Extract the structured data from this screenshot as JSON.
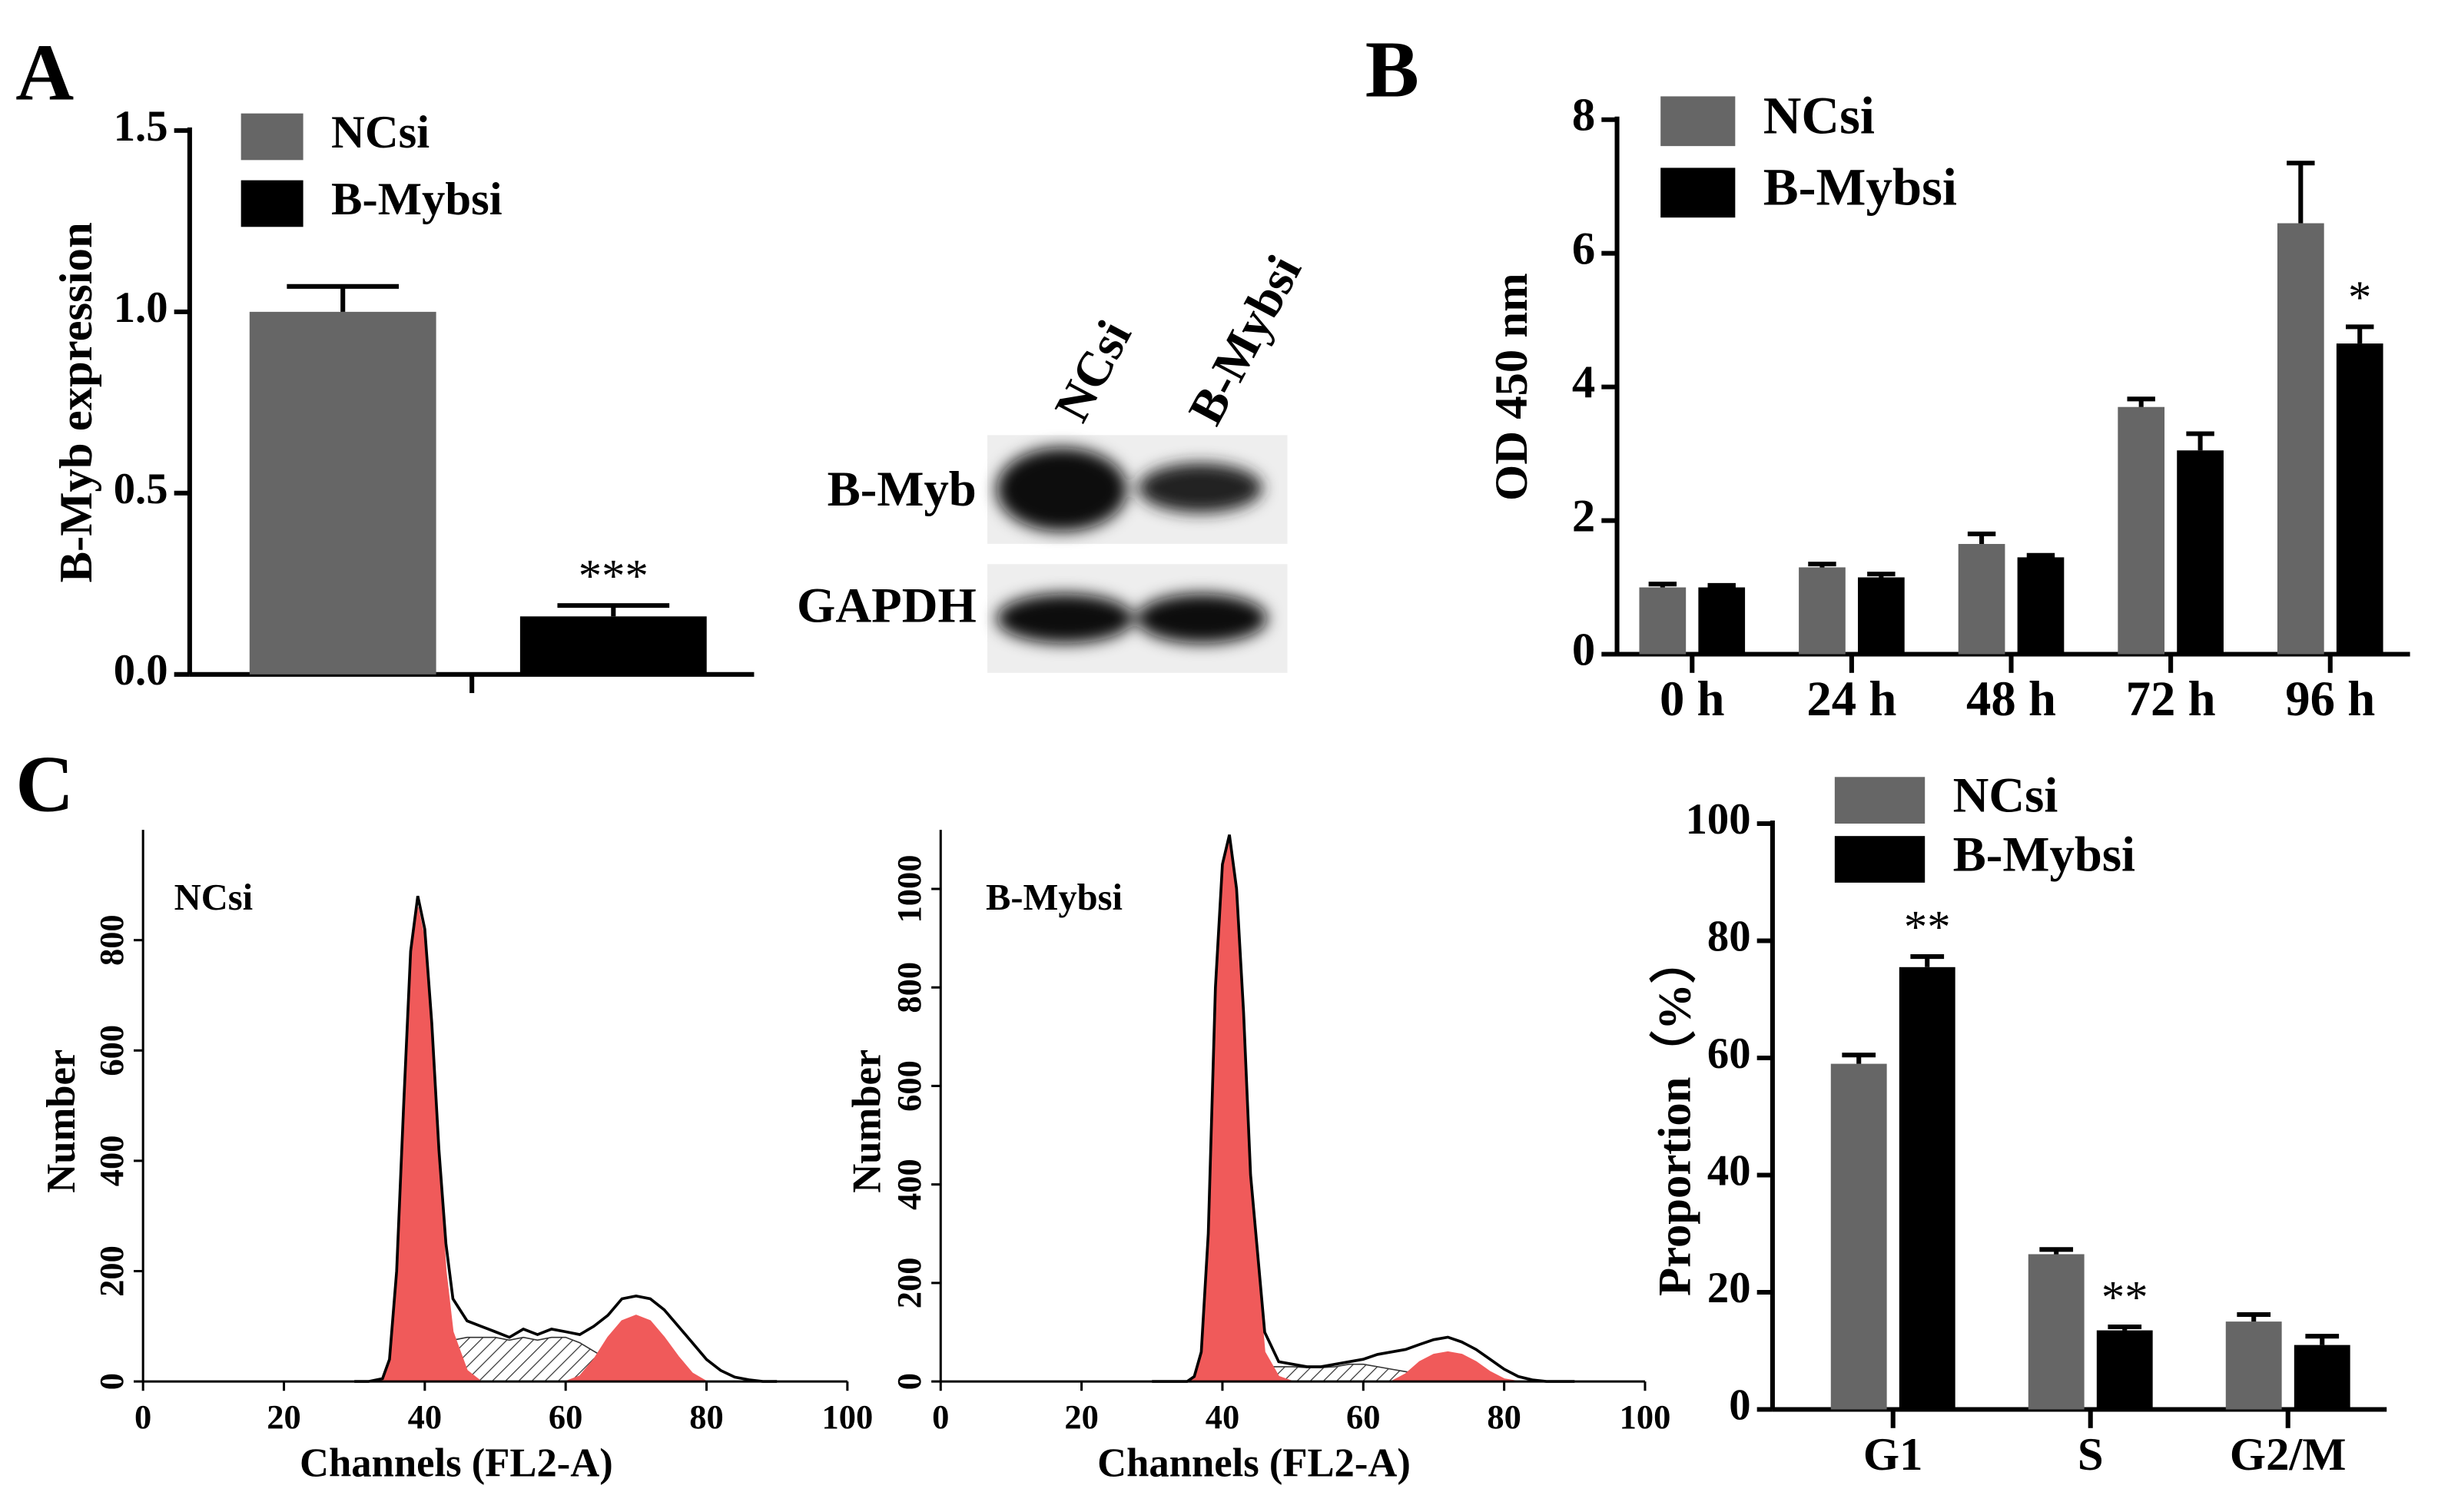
{
  "panels": [
    "A",
    "B",
    "C"
  ],
  "blot": {
    "lanes": [
      "NCsi",
      "B-Mybsi"
    ],
    "rows": [
      "B-Myb",
      "GAPDH"
    ]
  },
  "chart_data": [
    {
      "type": "bar",
      "ylabel": "B-Myb expression",
      "categories": [
        null
      ],
      "series": [
        {
          "name": "NCsi",
          "color": "#666666",
          "values": [
            1.0
          ],
          "errors": [
            0.07
          ]
        },
        {
          "name": "B-Mybsi",
          "color": "#000000",
          "values": [
            0.16
          ],
          "errors": [
            0.03
          ],
          "annotations": [
            "***"
          ]
        }
      ],
      "ylim": [
        0,
        1.5
      ],
      "yticks": [
        {
          "value": 0,
          "label": "0.0"
        },
        0.5,
        {
          "value": 1,
          "label": "1.0"
        },
        1.5
      ]
    },
    {
      "type": "bar",
      "ylabel": "OD 450 nm",
      "categories": [
        "0 h",
        "24 h",
        "48 h",
        "72 h",
        "96 h"
      ],
      "series": [
        {
          "name": "NCsi",
          "color": "#666666",
          "values": [
            1.0,
            1.3,
            1.65,
            3.7,
            6.45
          ],
          "errors": [
            0.05,
            0.05,
            0.15,
            0.12,
            0.9
          ]
        },
        {
          "name": "B-Mybsi",
          "color": "#000000",
          "values": [
            1.0,
            1.15,
            1.45,
            3.05,
            4.65
          ],
          "errors": [
            0.03,
            0.05,
            0.03,
            0.25,
            0.25
          ],
          "annotations": [
            null,
            null,
            null,
            null,
            "*"
          ]
        }
      ],
      "ylim": [
        0,
        8
      ],
      "yticks": [
        0,
        2,
        4,
        6,
        8
      ]
    },
    {
      "type": "area",
      "label": "NCsi",
      "xlabel": "Channels (FL2-A)",
      "ylabel": "Number",
      "x": [
        30,
        32,
        34,
        35,
        36,
        37,
        38,
        39,
        40,
        41,
        42,
        43,
        44,
        46,
        48,
        50,
        52,
        54,
        56,
        58,
        60,
        62,
        64,
        66,
        68,
        70,
        72,
        74,
        76,
        78,
        80,
        82,
        84,
        86,
        88,
        90
      ],
      "series": [
        {
          "color": "#333333",
          "pattern": "hatch",
          "values": [
            0,
            0,
            0,
            0,
            5,
            15,
            30,
            45,
            55,
            60,
            65,
            70,
            75,
            80,
            80,
            80,
            75,
            80,
            75,
            80,
            80,
            70,
            55,
            40,
            30,
            20,
            15,
            10,
            5,
            0,
            0,
            0,
            0,
            0,
            0,
            0
          ]
        },
        {
          "color": "#f05a5a",
          "values": [
            0,
            0,
            5,
            40,
            200,
            500,
            770,
            860,
            800,
            630,
            390,
            200,
            90,
            20,
            0,
            0,
            0,
            0,
            0,
            0,
            0,
            0,
            0,
            0,
            0,
            0,
            0,
            0,
            0,
            0,
            0,
            0,
            0,
            0,
            0,
            0
          ]
        },
        {
          "color": "#f05a5a",
          "values": [
            0,
            0,
            0,
            0,
            0,
            0,
            0,
            0,
            0,
            0,
            0,
            0,
            0,
            0,
            0,
            0,
            0,
            0,
            0,
            0,
            0,
            10,
            40,
            80,
            110,
            120,
            110,
            80,
            45,
            15,
            0,
            0,
            0,
            0,
            0,
            0
          ]
        },
        {
          "color": "#000000",
          "style": "line",
          "values": [
            0,
            0,
            5,
            40,
            200,
            500,
            780,
            880,
            820,
            650,
            420,
            250,
            150,
            110,
            100,
            90,
            80,
            95,
            85,
            95,
            90,
            85,
            100,
            120,
            150,
            155,
            150,
            130,
            100,
            70,
            40,
            20,
            8,
            3,
            0,
            0
          ]
        }
      ],
      "xlim": [
        0,
        100
      ],
      "xticks": [
        0,
        20,
        40,
        60,
        80,
        100
      ],
      "ylim": [
        0,
        1000
      ],
      "yticks": [
        0,
        200,
        400,
        600,
        800
      ]
    },
    {
      "type": "area",
      "label": "B-Mybsi",
      "xlabel": "Channels (FL2-A)",
      "ylabel": "Number",
      "x": [
        30,
        32,
        34,
        35,
        36,
        37,
        38,
        39,
        40,
        41,
        42,
        43,
        44,
        46,
        48,
        50,
        52,
        54,
        56,
        58,
        60,
        62,
        64,
        66,
        68,
        70,
        72,
        74,
        76,
        78,
        80,
        82,
        84,
        86,
        88,
        90
      ],
      "series": [
        {
          "color": "#333333",
          "pattern": "hatch",
          "values": [
            0,
            0,
            0,
            0,
            0,
            0,
            0,
            5,
            10,
            15,
            20,
            25,
            30,
            30,
            30,
            30,
            28,
            28,
            30,
            35,
            35,
            30,
            25,
            20,
            15,
            10,
            8,
            5,
            3,
            0,
            0,
            0,
            0,
            0,
            0,
            0
          ]
        },
        {
          "color": "#f05a5a",
          "values": [
            0,
            0,
            0,
            0,
            10,
            60,
            300,
            790,
            1040,
            1100,
            990,
            730,
            390,
            60,
            10,
            0,
            0,
            0,
            0,
            0,
            0,
            0,
            0,
            0,
            0,
            0,
            0,
            0,
            0,
            0,
            0,
            0,
            0,
            0,
            0,
            0
          ]
        },
        {
          "color": "#f05a5a",
          "values": [
            0,
            0,
            0,
            0,
            0,
            0,
            0,
            0,
            0,
            0,
            0,
            0,
            0,
            0,
            0,
            0,
            0,
            0,
            0,
            0,
            0,
            0,
            0,
            15,
            40,
            55,
            60,
            55,
            40,
            20,
            5,
            0,
            0,
            0,
            0,
            0
          ]
        },
        {
          "color": "#000000",
          "style": "line",
          "values": [
            0,
            0,
            0,
            0,
            10,
            60,
            300,
            800,
            1050,
            1110,
            1000,
            750,
            420,
            100,
            40,
            35,
            30,
            30,
            35,
            40,
            45,
            55,
            60,
            65,
            75,
            85,
            90,
            80,
            65,
            45,
            25,
            10,
            3,
            0,
            0,
            0
          ]
        }
      ],
      "xlim": [
        0,
        100
      ],
      "xticks": [
        0,
        20,
        40,
        60,
        80,
        100
      ],
      "ylim": [
        0,
        1120
      ],
      "yticks": [
        0,
        200,
        400,
        600,
        800,
        1000
      ]
    },
    {
      "type": "bar",
      "ylabel": "Proportion（%）",
      "categories": [
        "G1",
        "S",
        "G2/M"
      ],
      "series": [
        {
          "name": "NCsi",
          "color": "#666666",
          "values": [
            59,
            26.5,
            15
          ],
          "errors": [
            1.5,
            0.8,
            1.2
          ]
        },
        {
          "name": "B-Mybsi",
          "color": "#000000",
          "values": [
            75.5,
            13.5,
            11
          ],
          "errors": [
            1.8,
            0.6,
            1.5
          ],
          "annotations": [
            "**",
            "**",
            null
          ]
        }
      ],
      "ylim": [
        0,
        100
      ],
      "yticks": [
        0,
        20,
        40,
        60,
        80,
        100
      ]
    }
  ]
}
